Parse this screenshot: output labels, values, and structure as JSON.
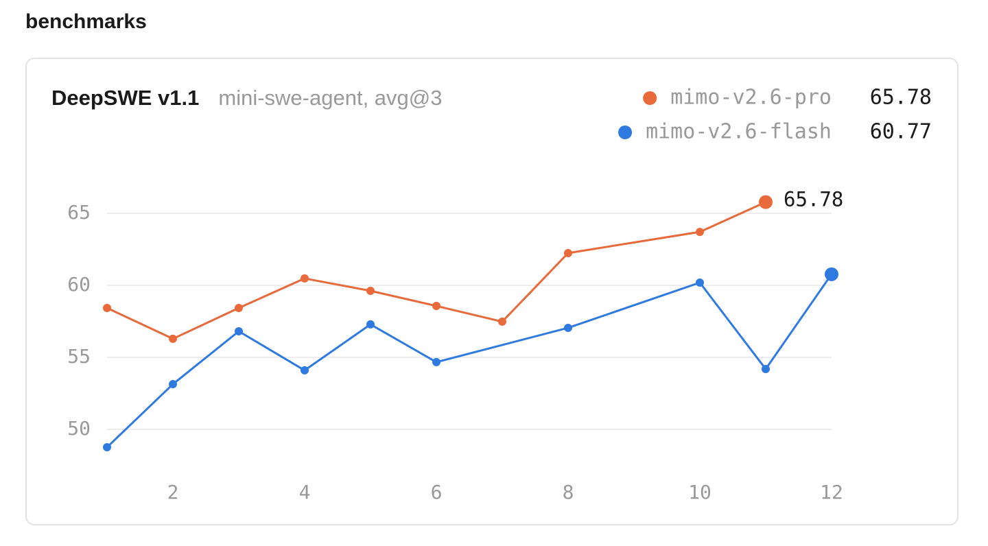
{
  "heading": "benchmarks",
  "chart_data": {
    "type": "line",
    "title": "DeepSWE v1.1",
    "subtitle": "mini-swe-agent, avg@3",
    "series": [
      {
        "name": "mimo-v2.6-pro",
        "color": "#e8693a",
        "x": [
          1,
          2,
          3,
          4,
          5,
          6,
          7,
          8,
          10,
          11
        ],
        "values": [
          58.43,
          56.29,
          58.43,
          60.48,
          59.62,
          58.57,
          57.48,
          62.24,
          63.71,
          65.78
        ]
      },
      {
        "name": "mimo-v2.6-flash",
        "color": "#2f7ae0",
        "x": [
          1,
          2,
          3,
          4,
          5,
          6,
          8,
          10,
          11,
          12
        ],
        "values": [
          48.76,
          53.14,
          56.81,
          54.1,
          57.29,
          54.67,
          57.05,
          60.19,
          54.19,
          60.77
        ]
      }
    ],
    "xlim": [
      1,
      12
    ],
    "xticks": [
      2,
      4,
      6,
      8,
      10,
      12
    ],
    "ylim": [
      48,
      67
    ],
    "yticks": [
      50,
      55,
      60,
      65
    ],
    "grid": true
  }
}
